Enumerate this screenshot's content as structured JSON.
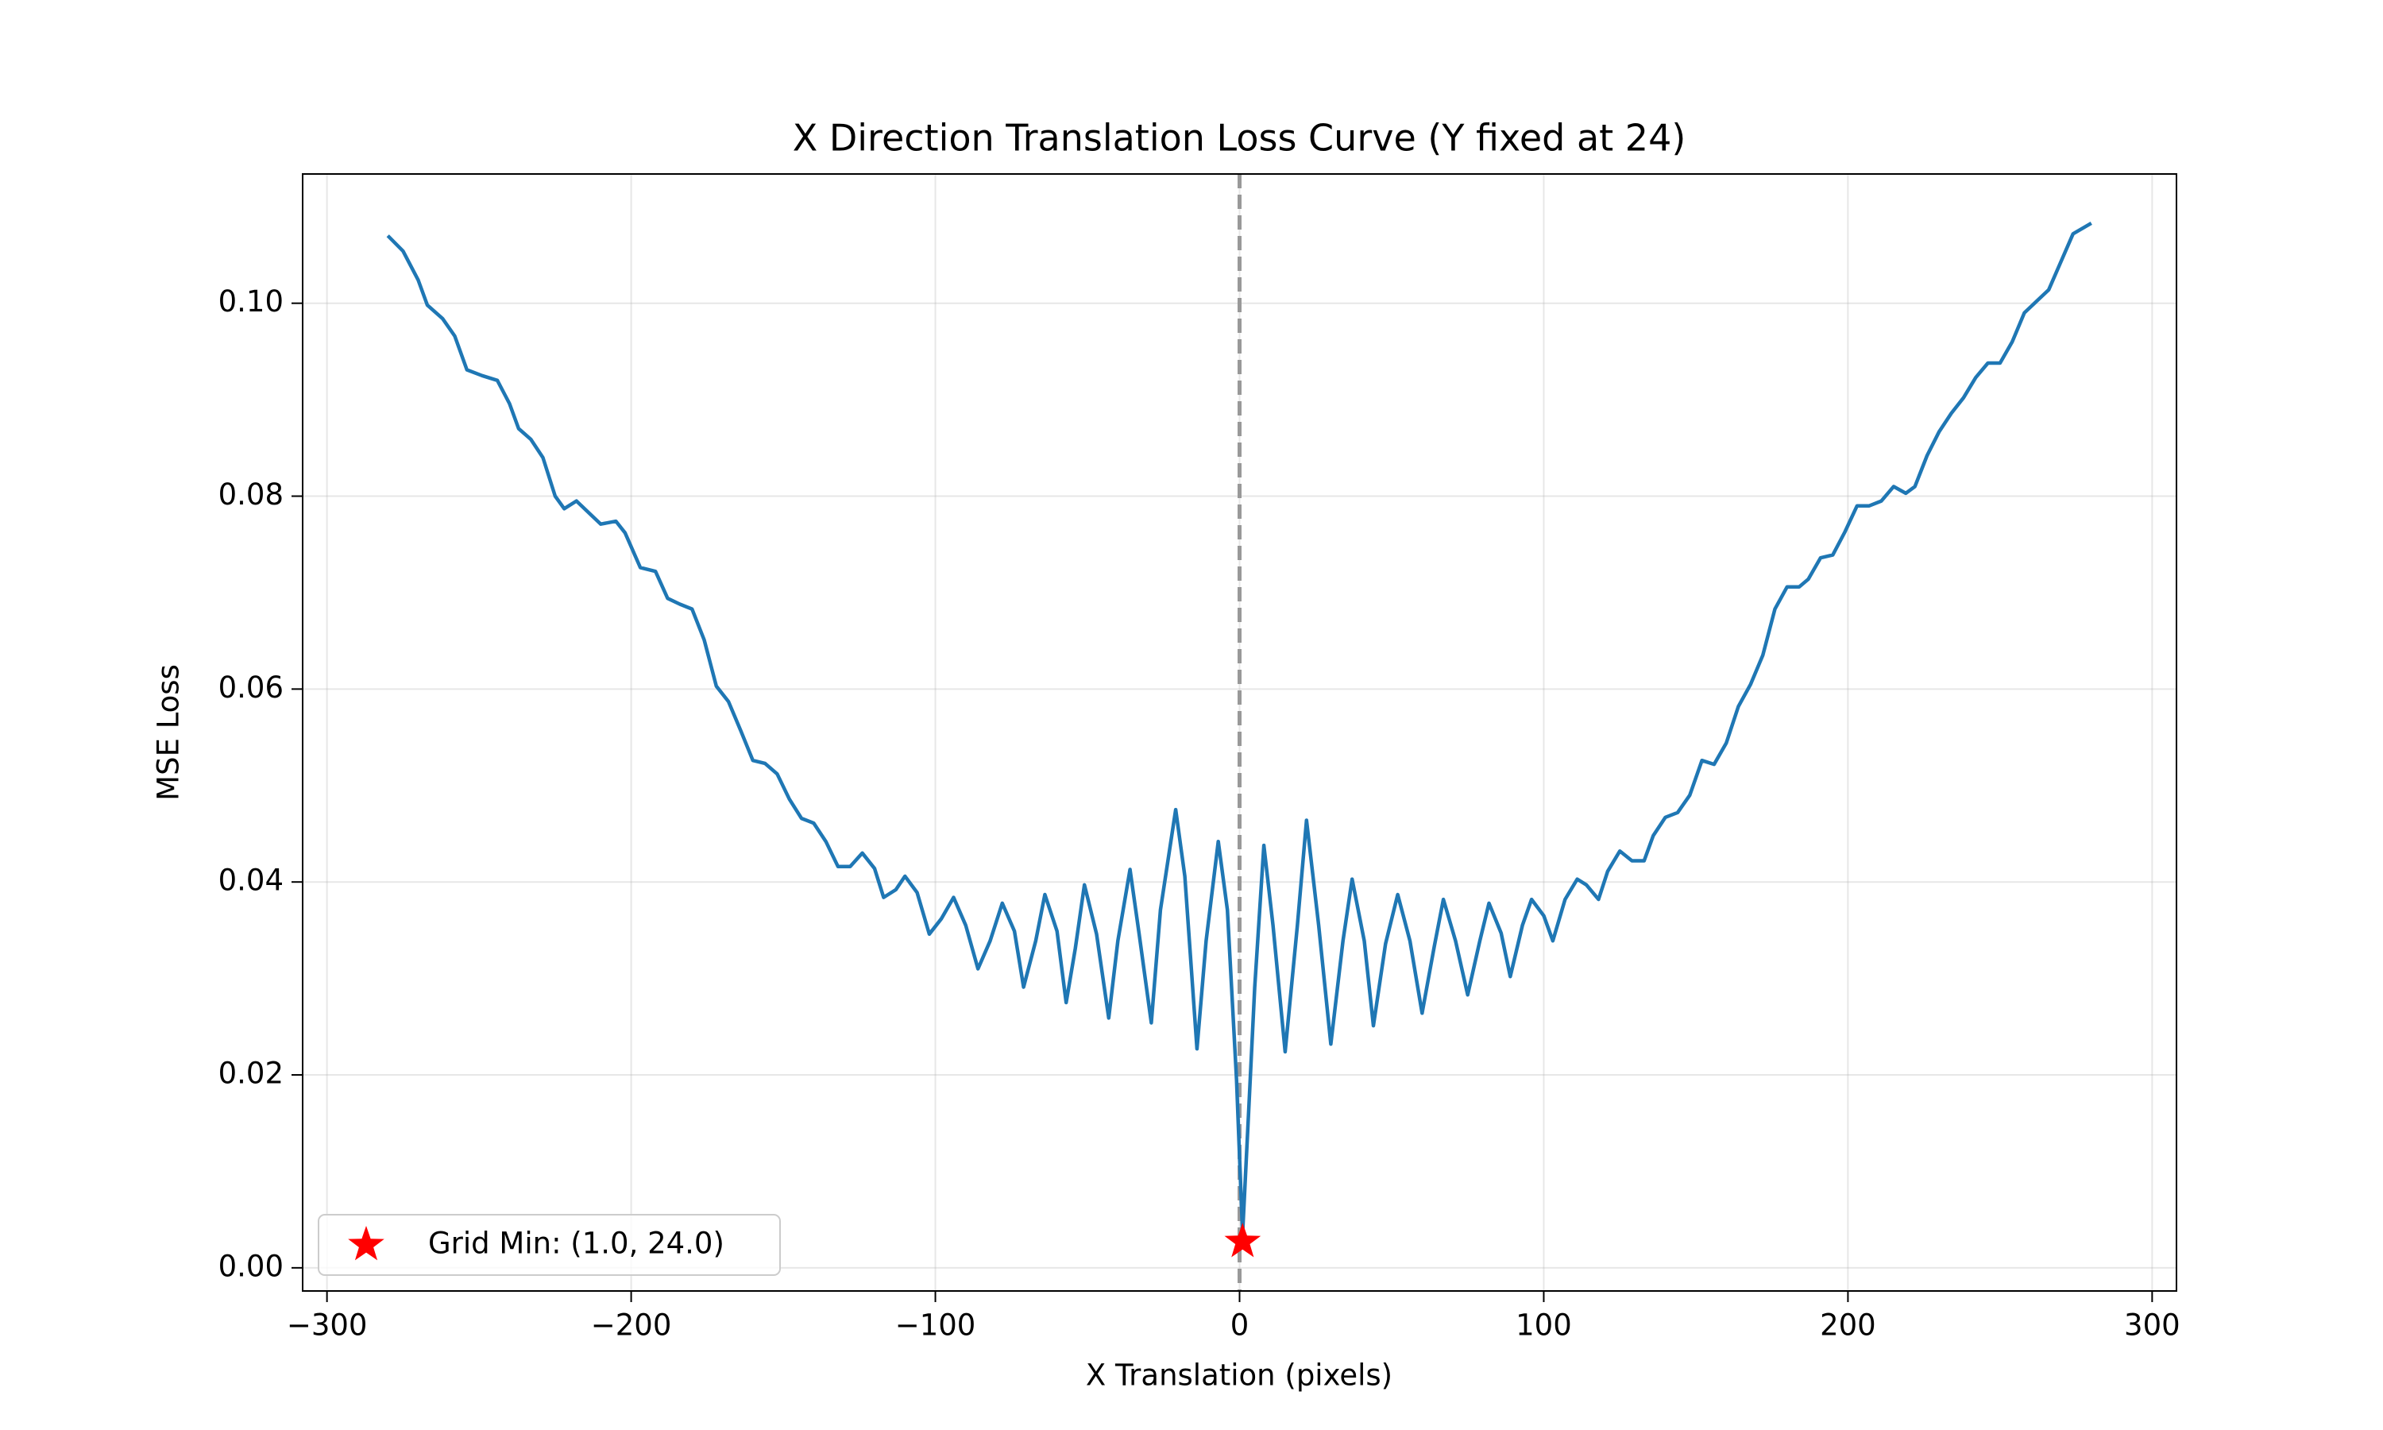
{
  "chart_data": {
    "type": "line",
    "title": "X Direction Translation Loss Curve (Y fixed at 24)",
    "x_label": "X Translation (pixels)",
    "y_label": "MSE Loss",
    "xlim": [
      -308,
      308
    ],
    "ylim": [
      -0.0024,
      0.1134
    ],
    "xticks": [
      {
        "value": -300,
        "label": "−300"
      },
      {
        "value": -200,
        "label": "−200"
      },
      {
        "value": -100,
        "label": "−100"
      },
      0,
      100,
      200,
      300
    ],
    "yticks": [
      {
        "value": 0,
        "label": "0.00"
      },
      {
        "value": 0.02,
        "label": "0.02"
      },
      {
        "value": 0.04,
        "label": "0.04"
      },
      {
        "value": 0.06,
        "label": "0.06"
      },
      {
        "value": 0.08,
        "label": "0.08"
      },
      {
        "value": 0.1,
        "label": "0.10"
      }
    ],
    "grid": true,
    "vline_x": 0,
    "vline_color": "#999999",
    "legend": "lower left",
    "series": [
      {
        "color": "#1f77b4",
        "x": [
          -280,
          -275,
          -270,
          -267,
          -262,
          -258,
          -254,
          -249,
          -244,
          -240,
          -237,
          -233,
          -229,
          -225,
          -222,
          -218,
          -215,
          -210,
          -205,
          -202,
          -197,
          -192,
          -188,
          -184,
          -180,
          -176,
          -172,
          -168,
          -164,
          -160,
          -156,
          -152,
          -148,
          -144,
          -140,
          -136,
          -132,
          -128,
          -124,
          -120,
          -117,
          -113,
          -110,
          -106,
          -102,
          -98,
          -94,
          -90,
          -86,
          -82,
          -78,
          -74,
          -71,
          -67,
          -64,
          -60,
          -57,
          -54,
          -51,
          -47,
          -43,
          -40,
          -36,
          -33,
          -29,
          -26,
          -21,
          -18,
          -14,
          -11,
          -7,
          -4,
          -1,
          1,
          3,
          5,
          8,
          11,
          15,
          19,
          22,
          26,
          30,
          34,
          37,
          41,
          44,
          48,
          52,
          56,
          60,
          64,
          67,
          71,
          75,
          79,
          82,
          86,
          89,
          93,
          96,
          100,
          103,
          107,
          111,
          114,
          118,
          121,
          125,
          129,
          133,
          136,
          140,
          144,
          148,
          152,
          156,
          160,
          164,
          168,
          172,
          176,
          180,
          184,
          187,
          191,
          195,
          199,
          203,
          207,
          211,
          215,
          219,
          222,
          226,
          230,
          234,
          238,
          242,
          246,
          250,
          254,
          258,
          262,
          266,
          270,
          274,
          280
        ],
        "values": [
          0.107,
          0.1054,
          0.1024,
          0.0998,
          0.0984,
          0.0966,
          0.0931,
          0.0925,
          0.092,
          0.0896,
          0.087,
          0.0859,
          0.084,
          0.08,
          0.0787,
          0.0795,
          0.0786,
          0.0771,
          0.0774,
          0.0762,
          0.0726,
          0.0722,
          0.0694,
          0.0688,
          0.0683,
          0.0651,
          0.0603,
          0.0587,
          0.0557,
          0.0526,
          0.0523,
          0.0512,
          0.0486,
          0.0466,
          0.0461,
          0.0442,
          0.0416,
          0.0416,
          0.043,
          0.0414,
          0.0384,
          0.0392,
          0.0406,
          0.0389,
          0.0346,
          0.0362,
          0.0384,
          0.0355,
          0.031,
          0.0339,
          0.0378,
          0.0349,
          0.0291,
          0.0339,
          0.0387,
          0.0349,
          0.0275,
          0.0331,
          0.0397,
          0.0346,
          0.0259,
          0.0339,
          0.0413,
          0.0346,
          0.0254,
          0.0371,
          0.0475,
          0.0406,
          0.0227,
          0.0339,
          0.0442,
          0.0371,
          0.0195,
          0.0035,
          0.0163,
          0.0291,
          0.0438,
          0.0355,
          0.0224,
          0.0355,
          0.0464,
          0.0355,
          0.0232,
          0.0339,
          0.0403,
          0.0339,
          0.0251,
          0.0336,
          0.0387,
          0.0339,
          0.0264,
          0.0333,
          0.0382,
          0.0339,
          0.0283,
          0.0339,
          0.0378,
          0.0347,
          0.0302,
          0.0355,
          0.0382,
          0.0365,
          0.0339,
          0.0382,
          0.0403,
          0.0397,
          0.0382,
          0.0411,
          0.0432,
          0.0422,
          0.0422,
          0.0448,
          0.0467,
          0.0472,
          0.049,
          0.0526,
          0.0522,
          0.0544,
          0.0582,
          0.0605,
          0.0635,
          0.0683,
          0.0706,
          0.0706,
          0.0714,
          0.0736,
          0.0739,
          0.0763,
          0.079,
          0.079,
          0.0795,
          0.081,
          0.0803,
          0.081,
          0.0842,
          0.0867,
          0.0886,
          0.0902,
          0.0923,
          0.0938,
          0.0938,
          0.096,
          0.099,
          0.1002,
          0.1014,
          0.1043,
          0.1072,
          0.1083
        ]
      },
      {
        "type": "scatter",
        "name": "Grid Min: (1.0, 24.0)",
        "color": "#ff0000",
        "marker": "star",
        "x": [
          1
        ],
        "values": [
          0.0027
        ]
      }
    ]
  }
}
